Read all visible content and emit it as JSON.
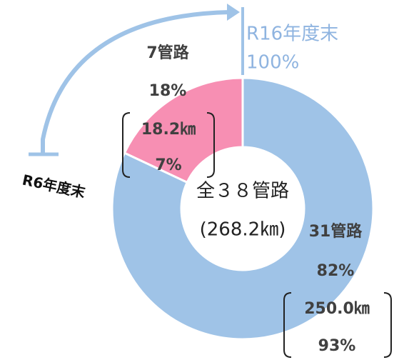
{
  "chart_data": {
    "type": "pie",
    "labels": [
      "7管路",
      "31管路"
    ],
    "values": [
      18,
      82
    ],
    "value_labels": [
      "18%",
      "82%"
    ],
    "lengths": [
      "18.2㎞",
      "250.0㎞"
    ],
    "length_shares": [
      "7%",
      "93%"
    ],
    "colors": [
      "#f78fb3",
      "#9fc3e7"
    ],
    "center_text": [
      "全３８管路",
      "(268.2㎞)"
    ],
    "annotations": {
      "end": [
        "R16年度末",
        "100%"
      ],
      "start": "R6年度末"
    }
  }
}
